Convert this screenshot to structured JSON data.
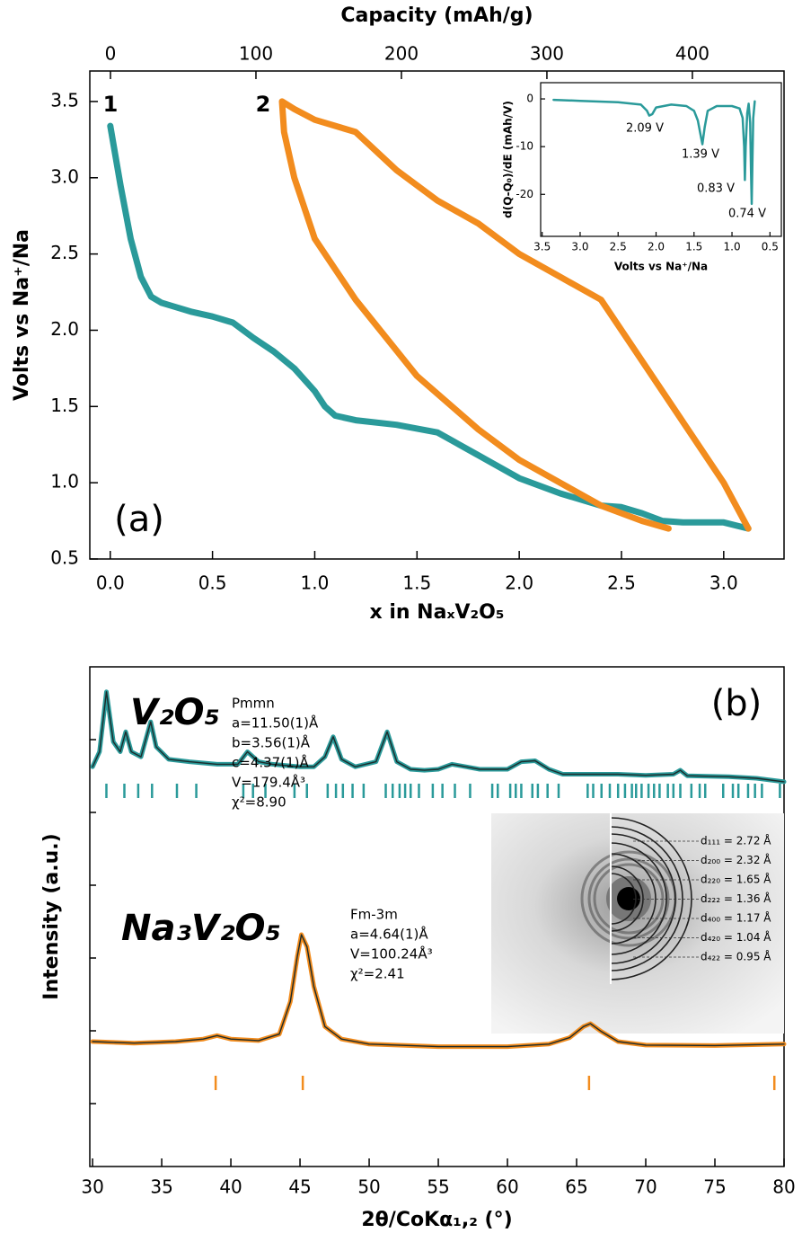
{
  "chart_data": [
    {
      "type": "line",
      "xlabel": "x in NaₓV₂O₅",
      "ylabel": "Volts vs Na⁺/Na",
      "x2label": "Capacity (mAh/g)",
      "panel_label": "(a)",
      "xlim": [
        -0.1,
        3.295
      ],
      "ylim": [
        0.5,
        3.7
      ],
      "x2lim": [
        -14.2,
        463
      ],
      "xticks": [
        {
          "value": 0,
          "label": "0.0"
        },
        {
          "value": 0.5,
          "label": "0.5"
        },
        {
          "value": 1,
          "label": "1.0"
        },
        {
          "value": 1.5,
          "label": "1.5"
        },
        {
          "value": 2,
          "label": "2.0"
        },
        {
          "value": 2.5,
          "label": "2.5"
        },
        {
          "value": 3,
          "label": "3.0"
        }
      ],
      "yticks": [
        0.5,
        {
          "value": 1,
          "label": "1.0"
        },
        1.5,
        {
          "value": 2,
          "label": "2.0"
        },
        2.5,
        {
          "value": 3,
          "label": "3.0"
        },
        3.5
      ],
      "x2ticks": [
        0,
        100,
        200,
        300,
        400
      ],
      "series": [
        {
          "name": "1",
          "color": "#2a9a9a",
          "x": [
            0,
            0.05,
            0.1,
            0.15,
            0.2,
            0.25,
            0.3,
            0.4,
            0.5,
            0.6,
            0.7,
            0.8,
            0.9,
            1.0,
            1.05,
            1.1,
            1.2,
            1.4,
            1.6,
            1.8,
            2.0,
            2.2,
            2.4,
            2.5,
            2.6,
            2.7,
            2.8,
            3.0,
            3.12
          ],
          "values": [
            3.34,
            2.95,
            2.6,
            2.35,
            2.22,
            2.18,
            2.16,
            2.12,
            2.09,
            2.05,
            1.95,
            1.86,
            1.75,
            1.6,
            1.5,
            1.44,
            1.41,
            1.38,
            1.33,
            1.18,
            1.03,
            0.93,
            0.85,
            0.84,
            0.8,
            0.75,
            0.74,
            0.74,
            0.7
          ]
        },
        {
          "name": "2",
          "color": "#f28c1e",
          "x": [
            3.12,
            3.1,
            3.0,
            2.8,
            2.6,
            2.4,
            2.2,
            2.0,
            1.8,
            1.6,
            1.4,
            1.2,
            1.0,
            0.9,
            0.84,
            0.85,
            0.9,
            1.0,
            1.2,
            1.5,
            1.8,
            2.0,
            2.2,
            2.4,
            2.6,
            2.73
          ],
          "values": [
            0.7,
            0.75,
            1.0,
            1.4,
            1.8,
            2.2,
            2.35,
            2.5,
            2.7,
            2.85,
            3.05,
            3.3,
            3.38,
            3.45,
            3.5,
            3.3,
            3.0,
            2.6,
            2.2,
            1.7,
            1.35,
            1.15,
            1.0,
            0.85,
            0.75,
            0.7
          ]
        }
      ]
    },
    {
      "type": "line",
      "xlabel": "Volts vs Na⁺/Na",
      "ylabel": "d(Q-Q₀)/dE (mAh/V)",
      "xlim": [
        3.52,
        0.35
      ],
      "ylim": [
        -28.8,
        3.4
      ],
      "xticks": [
        3.5,
        {
          "value": 3,
          "label": "3.0"
        },
        2.5,
        {
          "value": 2,
          "label": "2.0"
        },
        1.5,
        {
          "value": 1,
          "label": "1.0"
        },
        0.5
      ],
      "yticks": [
        0,
        -10,
        -20
      ],
      "annotations": [
        "2.09 V",
        "1.39 V",
        "0.83 V",
        "0.74 V"
      ],
      "series": [
        {
          "color": "#2a9a9a",
          "x": [
            3.35,
            3.0,
            2.5,
            2.2,
            2.12,
            2.09,
            2.05,
            2.0,
            1.8,
            1.6,
            1.5,
            1.45,
            1.42,
            1.39,
            1.36,
            1.32,
            1.2,
            1.0,
            0.9,
            0.86,
            0.84,
            0.83,
            0.82,
            0.8,
            0.78,
            0.76,
            0.75,
            0.74,
            0.73,
            0.72,
            0.7
          ],
          "values": [
            -0.2,
            -0.4,
            -0.7,
            -1.2,
            -2.5,
            -3.5,
            -3.2,
            -1.8,
            -1.2,
            -1.5,
            -2.5,
            -4.5,
            -7,
            -9.5,
            -6,
            -2.5,
            -1.5,
            -1.5,
            -2,
            -4,
            -10,
            -17,
            -10,
            -3,
            -1,
            -5,
            -15,
            -22,
            -12,
            -4,
            -0.5
          ]
        }
      ]
    },
    {
      "type": "line",
      "xlabel": "2θ/CoKα₁,₂ (°)",
      "ylabel": "Intensity (a.u.)",
      "panel_label": "(b)",
      "xlim": [
        29.8,
        80
      ],
      "ylim": [
        0,
        100
      ],
      "xticks": [
        30,
        35,
        40,
        45,
        50,
        55,
        60,
        65,
        70,
        75,
        80
      ],
      "annotations": [
        [
          "Pmmn",
          "a=11.50(1)Å",
          "b=3.56(1)Å",
          "c=4.37(1)Å",
          "V=179.4Å³",
          "χ²=8.90"
        ],
        [
          "Fm-3m",
          "a=4.64(1)Å",
          "V=100.24Å³",
          "χ²=2.41"
        ]
      ],
      "saed_labels": [
        "d₁₁₁ = 2.72 Å",
        "d₂₀₀ = 2.32 Å",
        "d₂₂₀ = 1.65 Å",
        "d₂₂₂ = 1.36 Å",
        "d₄₀₀ = 1.17 Å",
        "d₄₂₀ = 1.04 Å",
        "d₄₂₂ = 0.95 Å"
      ],
      "series": [
        {
          "name": "V₂O₅",
          "color": "#2a9a9a",
          "x": [
            30,
            30.5,
            31,
            31.5,
            32,
            32.4,
            32.8,
            33.5,
            34.2,
            34.6,
            35.5,
            37,
            39,
            40.5,
            41.2,
            42,
            43,
            45,
            46,
            46.8,
            47.4,
            48,
            49,
            50.5,
            51.3,
            52,
            53,
            54,
            55,
            56,
            57,
            58,
            59,
            60,
            61,
            62,
            63,
            64,
            66,
            68,
            70,
            72,
            72.5,
            73,
            76,
            78,
            80
          ],
          "values": [
            80,
            83,
            95,
            85,
            83,
            87,
            83,
            82,
            89,
            84,
            81.5,
            81,
            80.5,
            80.5,
            83,
            81,
            80.5,
            80,
            80,
            82,
            86,
            81.5,
            80,
            81,
            87,
            81,
            79.5,
            79.3,
            79.5,
            80.5,
            80,
            79.5,
            79.5,
            79.5,
            81,
            81.2,
            79.5,
            78.5,
            78.5,
            78.5,
            78.3,
            78.5,
            79.3,
            78.2,
            78,
            77.7,
            77
          ],
          "reflections": [
            31.0,
            32.3,
            33.3,
            34.3,
            36.1,
            37.5,
            40.9,
            41.6,
            42.5,
            44.6,
            45.5,
            47.0,
            47.6,
            48.1,
            48.8,
            49.6,
            51.2,
            51.7,
            52.2,
            52.6,
            53.0,
            53.6,
            54.6,
            55.3,
            56.2,
            57.3,
            58.9,
            59.3,
            60.2,
            60.6,
            61.0,
            61.8,
            62.2,
            62.9,
            63.7,
            65.8,
            66.2,
            66.8,
            67.4,
            68.0,
            68.5,
            69.0,
            69.3,
            69.7,
            70.2,
            70.6,
            71.0,
            71.6,
            72.0,
            72.5,
            73.3,
            73.9,
            74.3,
            75.6,
            76.3,
            76.7,
            77.4,
            77.9,
            78.4,
            79.7
          ]
        },
        {
          "name": "Na₃V₂O₅",
          "color": "#f28c1e",
          "x": [
            30,
            33,
            36,
            38,
            39,
            40,
            42,
            43.5,
            44.3,
            44.8,
            45.1,
            45.5,
            46,
            46.8,
            48,
            50,
            55,
            60,
            63,
            64.5,
            65.5,
            66,
            66.8,
            68,
            70,
            75,
            80
          ],
          "values": [
            25,
            24.7,
            25,
            25.5,
            26.2,
            25.5,
            25.2,
            26.5,
            33,
            42,
            46.4,
            44,
            36,
            28,
            25.5,
            24.5,
            24,
            24,
            24.5,
            25.8,
            28,
            28.6,
            27,
            25,
            24.3,
            24.2,
            24.5
          ],
          "reflections": [
            38.9,
            45.2,
            65.9,
            79.3
          ]
        }
      ]
    }
  ]
}
